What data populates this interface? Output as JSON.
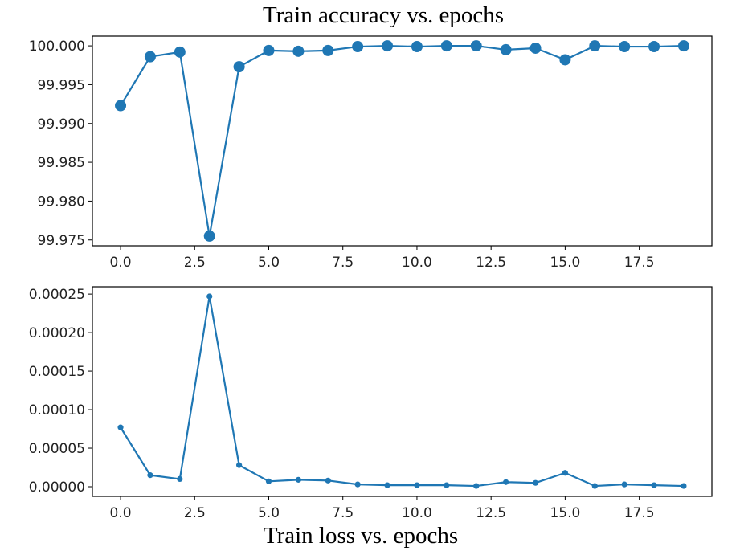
{
  "figure": {
    "top_title": "Train accuracy vs. epochs",
    "bottom_title": "Train loss vs. epochs"
  },
  "colors": {
    "series": "#1f77b4",
    "axes": "#000000",
    "background": "#ffffff"
  },
  "chart_data": [
    {
      "type": "line",
      "title": "Train accuracy vs. epochs",
      "xlabel": "",
      "ylabel": "",
      "grid": false,
      "marker": "circle-large",
      "x": [
        0,
        1,
        2,
        3,
        4,
        5,
        6,
        7,
        8,
        9,
        10,
        11,
        12,
        13,
        14,
        15,
        16,
        17,
        18,
        19
      ],
      "y": [
        99.9923,
        99.9986,
        99.9992,
        99.9755,
        99.9973,
        99.9994,
        99.9993,
        99.9994,
        99.9999,
        100.0,
        99.9999,
        100.0,
        100.0,
        99.9995,
        99.9997,
        99.9982,
        100.0,
        99.9999,
        99.9999,
        100.0
      ],
      "xlim": [
        -0.95,
        19.95
      ],
      "ylim": [
        99.97425,
        100.00125
      ],
      "xticks": [
        0.0,
        2.5,
        5.0,
        7.5,
        10.0,
        12.5,
        15.0,
        17.5
      ],
      "xtick_labels": [
        "0.0",
        "2.5",
        "5.0",
        "7.5",
        "10.0",
        "12.5",
        "15.0",
        "17.5"
      ],
      "yticks": [
        99.975,
        99.98,
        99.985,
        99.99,
        99.995,
        100.0
      ],
      "ytick_labels": [
        "99.975",
        "99.980",
        "99.985",
        "99.990",
        "99.995",
        "100.000"
      ]
    },
    {
      "type": "line",
      "title": "Train loss vs. epochs",
      "xlabel": "",
      "ylabel": "",
      "grid": false,
      "marker": "circle-small",
      "x": [
        0,
        1,
        2,
        3,
        4,
        5,
        6,
        7,
        8,
        9,
        10,
        11,
        12,
        13,
        14,
        15,
        16,
        17,
        18,
        19
      ],
      "y": [
        7.7e-05,
        1.5e-05,
        1e-05,
        0.000247,
        2.8e-05,
        7e-06,
        9e-06,
        8e-06,
        3e-06,
        2e-06,
        2e-06,
        2e-06,
        1e-06,
        6e-06,
        5e-06,
        1.8e-05,
        1e-06,
        3e-06,
        2e-06,
        1e-06
      ],
      "xlim": [
        -0.95,
        19.95
      ],
      "ylim": [
        -1.25e-05,
        0.0002595
      ],
      "xticks": [
        0.0,
        2.5,
        5.0,
        7.5,
        10.0,
        12.5,
        15.0,
        17.5
      ],
      "xtick_labels": [
        "0.0",
        "2.5",
        "5.0",
        "7.5",
        "10.0",
        "12.5",
        "15.0",
        "17.5"
      ],
      "yticks": [
        0.0,
        5e-05,
        0.0001,
        0.00015,
        0.0002,
        0.00025
      ],
      "ytick_labels": [
        "0.00000",
        "0.00005",
        "0.00010",
        "0.00015",
        "0.00020",
        "0.00025"
      ]
    }
  ]
}
